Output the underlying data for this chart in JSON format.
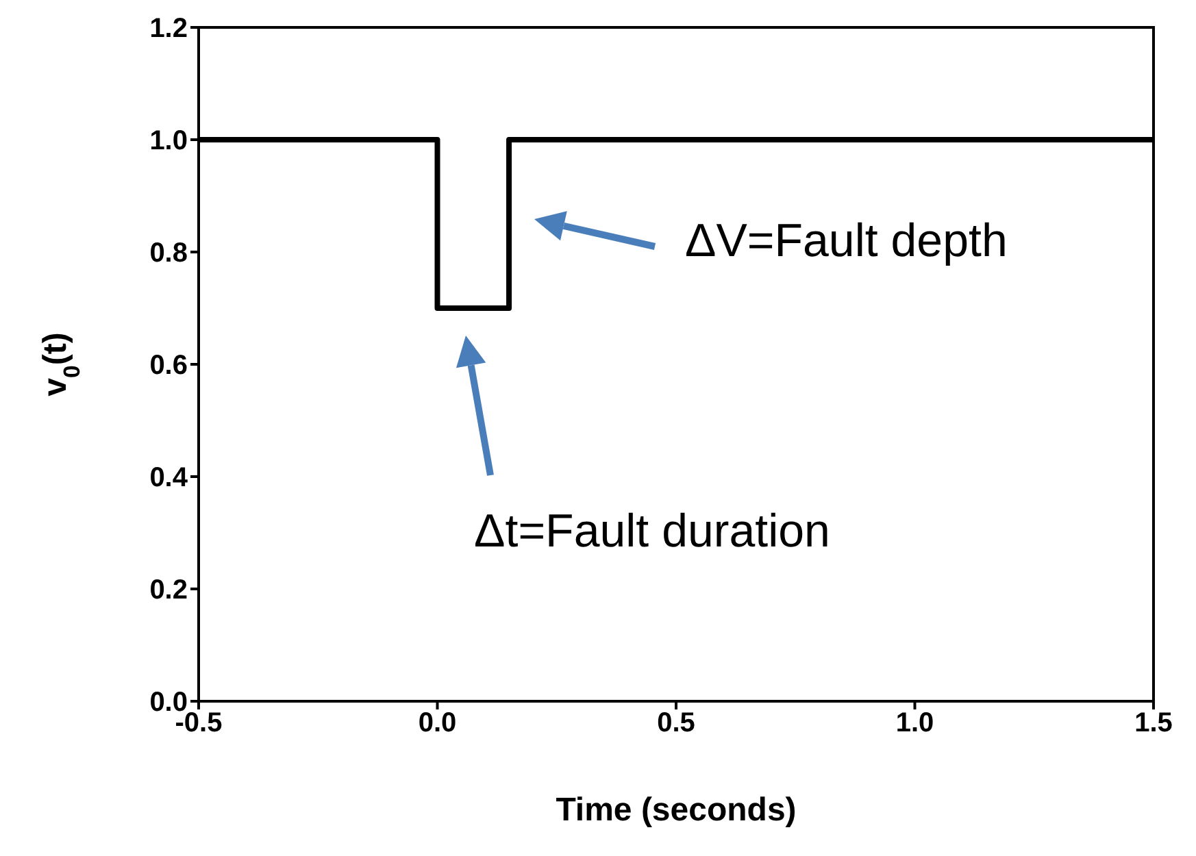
{
  "chart_data": {
    "type": "step",
    "xlabel": "Time (seconds)",
    "ylabel": "v$_{0}$(t)",
    "x": [
      -0.5,
      0,
      0.15,
      1.5
    ],
    "series": [
      {
        "color": "#000000",
        "values": [
          1.0,
          0.7,
          1.0,
          1.0
        ]
      }
    ],
    "xlim": [
      -0.5,
      1.5
    ],
    "xticks": [
      {
        "value": -0.5,
        "label": "-0.5"
      },
      {
        "value": 0,
        "label": "0.0"
      },
      {
        "value": 0.5,
        "label": "0.5"
      },
      {
        "value": 1,
        "label": "1.0"
      },
      {
        "value": 1.5,
        "label": "1.5"
      }
    ],
    "ylim": [
      0,
      1.2
    ],
    "yticks": [
      {
        "value": 0,
        "label": "0.0"
      },
      {
        "value": 0.2,
        "label": "0.2"
      },
      {
        "value": 0.4,
        "label": "0.4"
      },
      {
        "value": 0.6,
        "label": "0.6"
      },
      {
        "value": 0.8,
        "label": "0.8"
      },
      {
        "value": 1,
        "label": "1.0"
      },
      {
        "value": 1.2,
        "label": "1.2"
      }
    ],
    "annotations": [
      "ΔV=Fault depth",
      "Δt=Fault duration"
    ],
    "grid": false,
    "legend": false,
    "line_style": "solid"
  }
}
